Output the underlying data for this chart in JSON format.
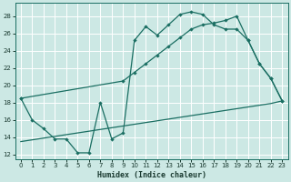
{
  "xlabel": "Humidex (Indice chaleur)",
  "bg_color": "#cce8e4",
  "grid_color": "#ffffff",
  "line_color": "#1a6e62",
  "xlim": [
    -0.5,
    23.5
  ],
  "ylim": [
    11.5,
    29.5
  ],
  "xticks": [
    0,
    1,
    2,
    3,
    4,
    5,
    6,
    7,
    8,
    9,
    10,
    11,
    12,
    13,
    14,
    15,
    16,
    17,
    18,
    19,
    20,
    21,
    22,
    23
  ],
  "yticks": [
    12,
    14,
    16,
    18,
    20,
    22,
    24,
    26,
    28
  ],
  "curve1_x": [
    0,
    1,
    2,
    3,
    4,
    5,
    6,
    7,
    8,
    9,
    10,
    11,
    12,
    13,
    14,
    15,
    16,
    17,
    18,
    19,
    20,
    21,
    22,
    23
  ],
  "curve1_y": [
    18.5,
    16.0,
    15.0,
    13.8,
    13.8,
    12.2,
    12.2,
    18.0,
    13.8,
    14.5,
    25.2,
    26.8,
    25.8,
    27.0,
    28.2,
    28.5,
    28.2,
    27.0,
    26.5,
    26.5,
    25.2,
    22.5,
    20.8,
    18.2
  ],
  "curve2_x": [
    0,
    9,
    10,
    11,
    12,
    13,
    14,
    15,
    16,
    17,
    18,
    19,
    20,
    21,
    22,
    23
  ],
  "curve2_y": [
    18.5,
    20.5,
    21.5,
    22.5,
    23.5,
    24.5,
    25.5,
    26.5,
    27.0,
    27.2,
    27.5,
    28.0,
    25.2,
    22.5,
    20.8,
    18.2
  ],
  "curve3_x": [
    0,
    1,
    2,
    3,
    4,
    5,
    6,
    7,
    8,
    9,
    10,
    11,
    12,
    13,
    14,
    15,
    16,
    17,
    18,
    19,
    20,
    21,
    22,
    23
  ],
  "curve3_y": [
    13.5,
    13.7,
    13.9,
    14.1,
    14.3,
    14.5,
    14.7,
    14.9,
    15.1,
    15.3,
    15.5,
    15.7,
    15.9,
    16.1,
    16.3,
    16.5,
    16.7,
    16.9,
    17.1,
    17.3,
    17.5,
    17.7,
    17.9,
    18.2
  ]
}
